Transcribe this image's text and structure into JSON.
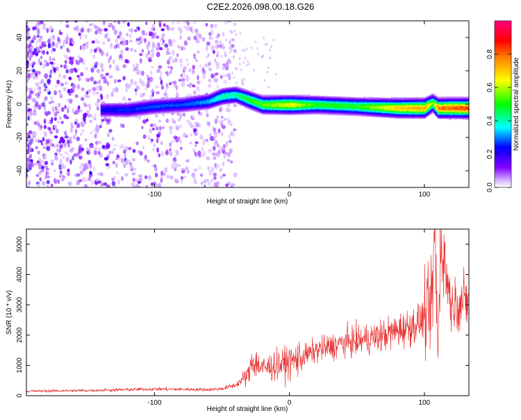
{
  "title": "C2E2.2026.098.00.18.G26",
  "chart_data": [
    {
      "type": "heatmap",
      "xlabel": "Height of straight line (km)",
      "ylabel": "Frequency (Hz)",
      "xlim": [
        -195,
        133
      ],
      "ylim": [
        -50,
        50
      ],
      "x_ticks": [
        -100,
        0,
        100
      ],
      "y_ticks": [
        -40,
        -20,
        0,
        20,
        40
      ],
      "colorbar": {
        "label": "Normalized spectral amplitude",
        "range": [
          0.0,
          1.0
        ],
        "ticks": [
          0.0,
          0.2,
          0.4,
          0.6,
          0.8
        ],
        "tick_labels": [
          "0.0",
          "0.2",
          "0.4",
          "0.6",
          "0.8"
        ],
        "colormap": [
          "#ffffff",
          "#8000ff",
          "#0000ff",
          "#00ffff",
          "#00ff00",
          "#ffff00",
          "#ff8000",
          "#ff0000",
          "#ff0080"
        ]
      },
      "ridge": {
        "x": [
          -140,
          -120,
          -100,
          -80,
          -60,
          -50,
          -40,
          -30,
          -20,
          0,
          20,
          50,
          80,
          100,
          106,
          110,
          133
        ],
        "y": [
          -3,
          -3,
          -1,
          0,
          2,
          5,
          6,
          3,
          0,
          0,
          0,
          -1,
          -2,
          -2,
          1,
          -2,
          -2
        ],
        "amplitude": [
          0.25,
          0.28,
          0.3,
          0.3,
          0.35,
          0.45,
          0.45,
          0.55,
          0.6,
          0.7,
          0.55,
          0.55,
          0.75,
          0.8,
          0.6,
          0.85,
          0.9
        ]
      },
      "noise_region_x": [
        -195,
        -50
      ]
    },
    {
      "type": "line",
      "xlabel": "Height of straight line (km)",
      "ylabel": "SNR (10 * v/v)",
      "xlim": [
        -195,
        133
      ],
      "ylim": [
        0,
        5500
      ],
      "x_ticks": [
        -100,
        0,
        100
      ],
      "y_ticks": [
        0,
        1000,
        2000,
        3000,
        4000,
        5000
      ],
      "color": "#e83030",
      "series": [
        {
          "x": [
            -195,
            -150,
            -120,
            -100,
            -80,
            -60,
            -50,
            -40,
            -30,
            -28,
            -20,
            -10,
            0,
            10,
            20,
            30,
            40,
            50,
            60,
            70,
            80,
            90,
            95,
            100,
            105,
            108,
            110,
            112,
            120,
            133
          ],
          "y": [
            150,
            170,
            200,
            220,
            210,
            200,
            230,
            350,
            700,
            1200,
            900,
            1000,
            1100,
            1300,
            1500,
            1600,
            1750,
            1800,
            1900,
            2000,
            2150,
            2300,
            2400,
            2600,
            2800,
            5500,
            1200,
            5200,
            3000,
            3150
          ]
        }
      ]
    }
  ]
}
